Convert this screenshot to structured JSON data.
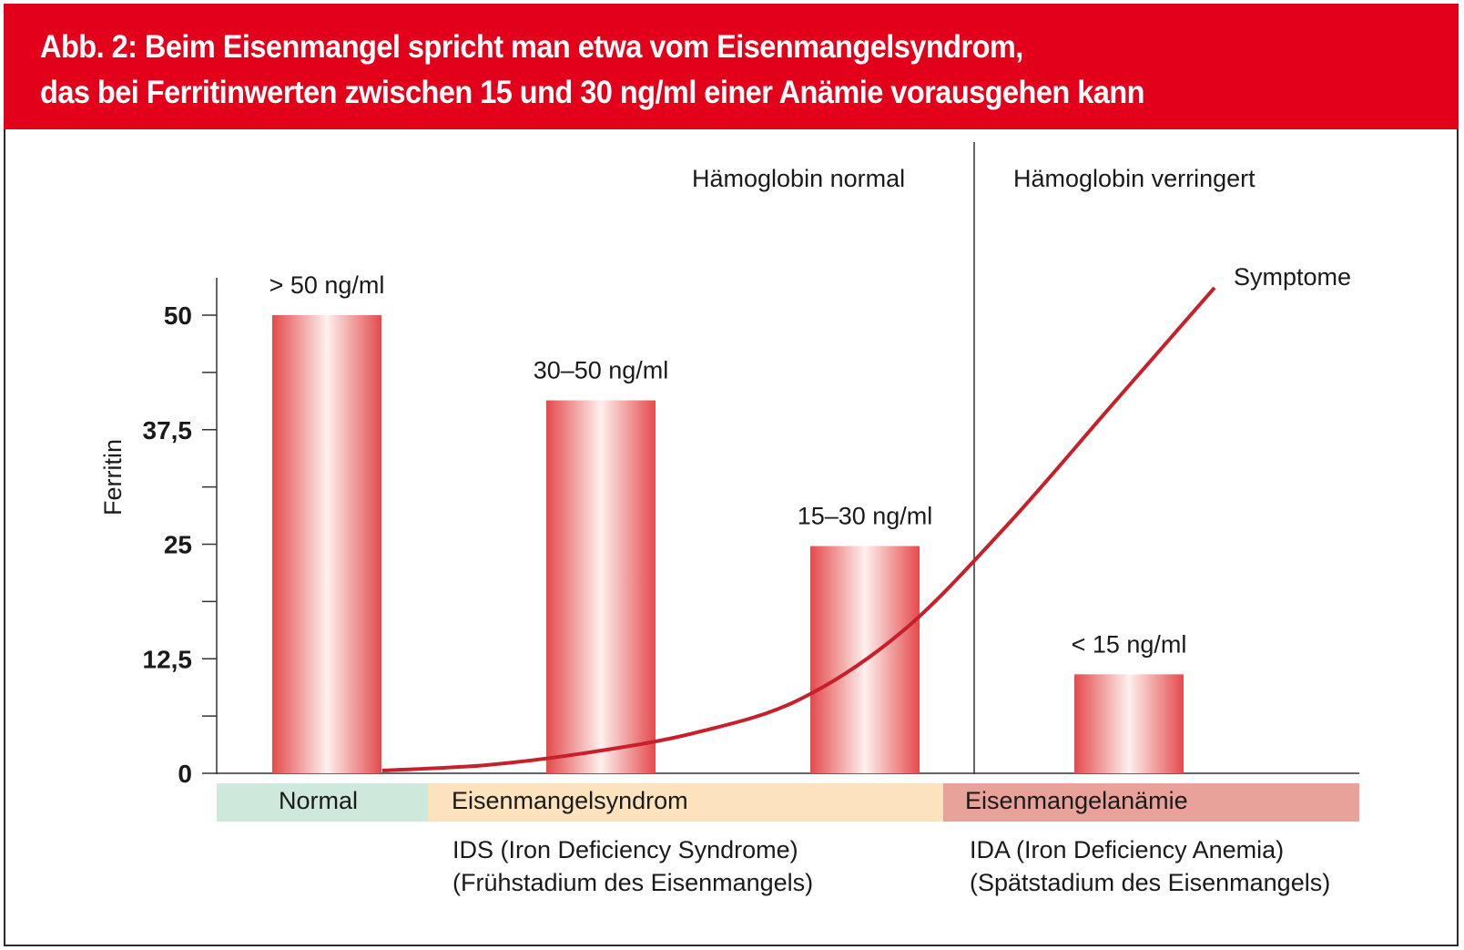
{
  "figure": {
    "title_line1": "Abb. 2: Beim Eisenmangel spricht man etwa vom Eisenmangelsyndrom,",
    "title_line2": "das bei Ferritinwerten zwischen 15 und 30 ng/ml einer Anämie vorausgehen kann"
  },
  "chart_data": {
    "type": "bar",
    "ylabel": "Ferritin",
    "ylim": [
      0,
      50
    ],
    "y_ticks": [
      {
        "value": 0,
        "label": "0"
      },
      {
        "value": 12.5,
        "label": "12,5"
      },
      {
        "value": 25,
        "label": "25"
      },
      {
        "value": 37.5,
        "label": "37,5"
      },
      {
        "value": 50,
        "label": "50"
      }
    ],
    "bars": [
      {
        "value": 50,
        "label": "> 50 ng/ml"
      },
      {
        "value": 40.7,
        "label": "30–50 ng/ml"
      },
      {
        "value": 24.8,
        "label": "15–30 ng/ml"
      },
      {
        "value": 10.8,
        "label": "< 15 ng/ml"
      }
    ],
    "bar_color": "#e8464a",
    "curve": {
      "name": "Symptome",
      "color": "#c8202a",
      "values": [
        0.3,
        0.9,
        2.3,
        4.4,
        8.0,
        15.5,
        27.0,
        40.0,
        53.0
      ]
    },
    "regions": [
      {
        "label": "Hämoglobin normal"
      },
      {
        "label": "Hämoglobin verringert"
      }
    ],
    "stages": [
      {
        "label": "Normal",
        "color": "#cfe8dc"
      },
      {
        "label": "Eisenmangelsyndrom",
        "color": "#fde3bd"
      },
      {
        "label": "Eisenmangelanämie",
        "color": "#e8a29a"
      }
    ],
    "notes": {
      "ids_line1": "IDS (Iron Deficiency Syndrome)",
      "ids_line2": "(Frühstadium des Eisenmangels)",
      "ida_line1": "IDA (Iron Deficiency Anemia)",
      "ida_line2": "(Spätstadium des Eisenmangels)"
    }
  }
}
